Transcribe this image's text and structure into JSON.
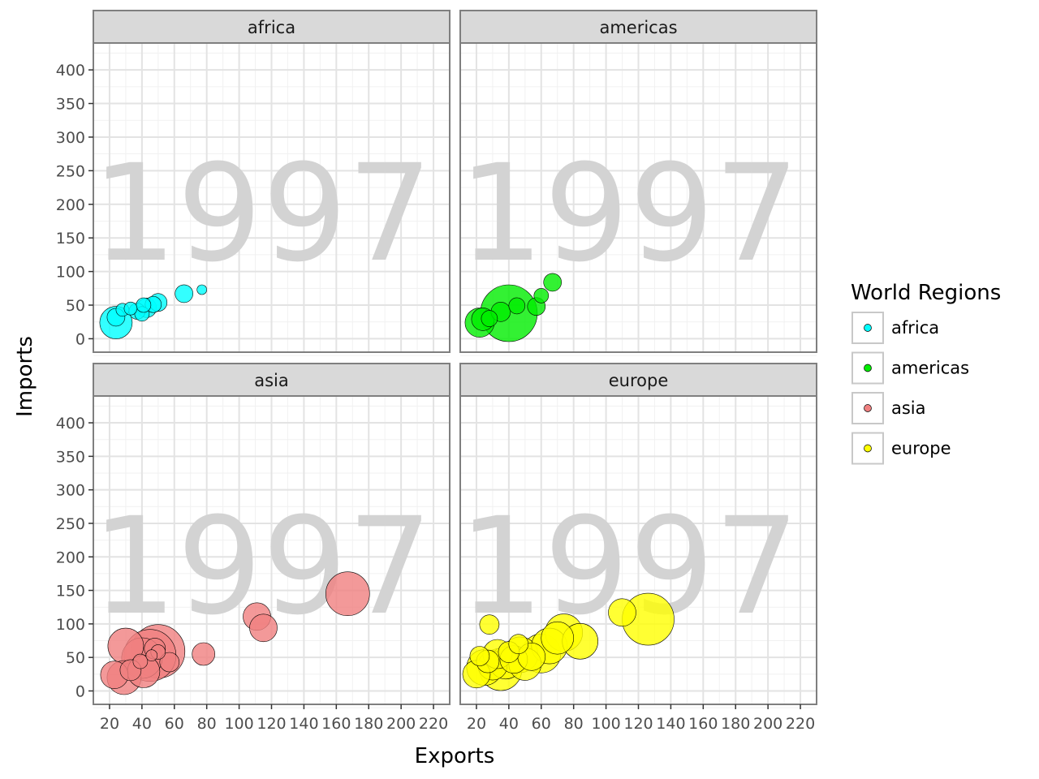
{
  "chart_data": {
    "type": "scatter",
    "variant": "faceted-bubble",
    "xlabel": "Exports",
    "ylabel": "Imports",
    "xlim": [
      10,
      230
    ],
    "ylim": [
      -20,
      440
    ],
    "x_ticks": [
      20,
      40,
      60,
      80,
      100,
      120,
      140,
      160,
      180,
      200,
      220
    ],
    "y_ticks": [
      0,
      50,
      100,
      150,
      200,
      250,
      300,
      350,
      400
    ],
    "year_label": "1997",
    "grid": true,
    "legend": {
      "title": "World Regions",
      "placement": "right",
      "items": [
        "africa",
        "americas",
        "asia",
        "europe"
      ]
    },
    "colors": {
      "africa": "#00FFFF",
      "americas": "#00EE00",
      "asia": "#F08080",
      "europe": "#FFFF00"
    },
    "facets": [
      {
        "name": "africa",
        "points": [
          {
            "x": 24,
            "y": 24,
            "r": 20
          },
          {
            "x": 24,
            "y": 32,
            "r": 11
          },
          {
            "x": 28,
            "y": 43,
            "r": 8
          },
          {
            "x": 33,
            "y": 45,
            "r": 8
          },
          {
            "x": 37,
            "y": 41,
            "r": 10
          },
          {
            "x": 40,
            "y": 37,
            "r": 9
          },
          {
            "x": 41,
            "y": 50,
            "r": 9
          },
          {
            "x": 43,
            "y": 46,
            "r": 12
          },
          {
            "x": 47,
            "y": 51,
            "r": 10
          },
          {
            "x": 50,
            "y": 54,
            "r": 11
          },
          {
            "x": 66,
            "y": 67,
            "r": 11
          },
          {
            "x": 77,
            "y": 73,
            "r": 6
          }
        ]
      },
      {
        "name": "americas",
        "points": [
          {
            "x": 22,
            "y": 24,
            "r": 18
          },
          {
            "x": 24,
            "y": 29,
            "r": 14
          },
          {
            "x": 28,
            "y": 30,
            "r": 10
          },
          {
            "x": 35,
            "y": 40,
            "r": 12
          },
          {
            "x": 40,
            "y": 38,
            "r": 35
          },
          {
            "x": 45,
            "y": 49,
            "r": 10
          },
          {
            "x": 57,
            "y": 48,
            "r": 11
          },
          {
            "x": 60,
            "y": 64,
            "r": 9
          },
          {
            "x": 67,
            "y": 84,
            "r": 11
          }
        ]
      },
      {
        "name": "asia",
        "points": [
          {
            "x": 23,
            "y": 24,
            "r": 17
          },
          {
            "x": 29,
            "y": 20,
            "r": 21
          },
          {
            "x": 30,
            "y": 67,
            "r": 22
          },
          {
            "x": 33,
            "y": 31,
            "r": 13
          },
          {
            "x": 40,
            "y": 49,
            "r": 25
          },
          {
            "x": 41,
            "y": 29,
            "r": 20
          },
          {
            "x": 39,
            "y": 44,
            "r": 9
          },
          {
            "x": 45,
            "y": 53,
            "r": 32
          },
          {
            "x": 50,
            "y": 59,
            "r": 33
          },
          {
            "x": 46,
            "y": 53,
            "r": 7
          },
          {
            "x": 48,
            "y": 63,
            "r": 13
          },
          {
            "x": 50,
            "y": 58,
            "r": 9
          },
          {
            "x": 57,
            "y": 43,
            "r": 12
          },
          {
            "x": 78,
            "y": 55,
            "r": 14
          },
          {
            "x": 111,
            "y": 111,
            "r": 17
          },
          {
            "x": 115,
            "y": 94,
            "r": 17
          },
          {
            "x": 167,
            "y": 145,
            "r": 27
          }
        ]
      },
      {
        "name": "europe",
        "points": [
          {
            "x": 20,
            "y": 25,
            "r": 17
          },
          {
            "x": 22,
            "y": 52,
            "r": 12
          },
          {
            "x": 25,
            "y": 35,
            "r": 22
          },
          {
            "x": 27,
            "y": 44,
            "r": 14
          },
          {
            "x": 28,
            "y": 99,
            "r": 12
          },
          {
            "x": 30,
            "y": 38,
            "r": 18
          },
          {
            "x": 33,
            "y": 55,
            "r": 18
          },
          {
            "x": 35,
            "y": 32,
            "r": 26
          },
          {
            "x": 38,
            "y": 42,
            "r": 20
          },
          {
            "x": 40,
            "y": 58,
            "r": 13
          },
          {
            "x": 43,
            "y": 47,
            "r": 17
          },
          {
            "x": 46,
            "y": 70,
            "r": 12
          },
          {
            "x": 47,
            "y": 54,
            "r": 22
          },
          {
            "x": 50,
            "y": 40,
            "r": 20
          },
          {
            "x": 54,
            "y": 51,
            "r": 17
          },
          {
            "x": 60,
            "y": 56,
            "r": 24
          },
          {
            "x": 65,
            "y": 67,
            "r": 22
          },
          {
            "x": 70,
            "y": 79,
            "r": 20
          },
          {
            "x": 74,
            "y": 87,
            "r": 23
          },
          {
            "x": 84,
            "y": 74,
            "r": 22
          },
          {
            "x": 110,
            "y": 117,
            "r": 17
          },
          {
            "x": 126,
            "y": 107,
            "r": 32
          }
        ]
      }
    ]
  }
}
